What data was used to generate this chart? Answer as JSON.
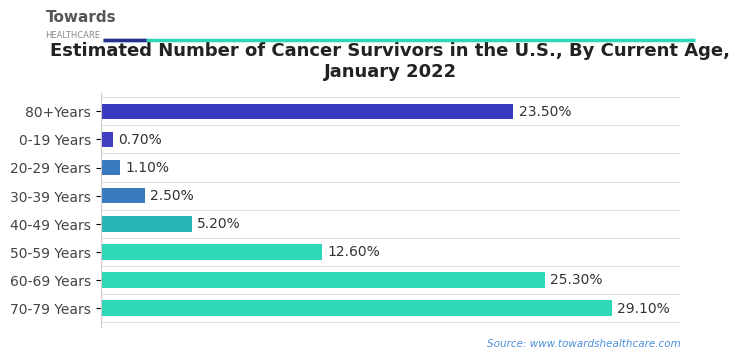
{
  "title": "Estimated Number of Cancer Survivors in the U.S., By Current Age,\nJanuary 2022",
  "categories": [
    "70-79 Years",
    "60-69 Years",
    "50-59 Years",
    "40-49 Years",
    "30-39 Years",
    "20-29 Years",
    "0-19 Years",
    "80+Years"
  ],
  "values": [
    29.1,
    25.3,
    12.6,
    5.2,
    2.5,
    1.1,
    0.7,
    23.5
  ],
  "labels": [
    "29.10%",
    "25.30%",
    "12.60%",
    "5.20%",
    "2.50%",
    "1.10%",
    "0.70%",
    "23.50%"
  ],
  "bar_colors": [
    "#2ed8b6",
    "#2ed8b6",
    "#2ed8b6",
    "#2ab5b5",
    "#3a7abf",
    "#3a7abf",
    "#3f3fbf",
    "#3939c0"
  ],
  "background_color": "#ffffff",
  "title_fontsize": 13,
  "label_fontsize": 10,
  "ytick_fontsize": 10,
  "source_text": "Source: www.towardshealthcare.com",
  "accent_line_teal": "#2ed8b6",
  "accent_line_navy": "#2c2c8c",
  "xlim": [
    0,
    33
  ],
  "logo_towards": "Towards",
  "logo_healthcare": "HEALTHCARE"
}
